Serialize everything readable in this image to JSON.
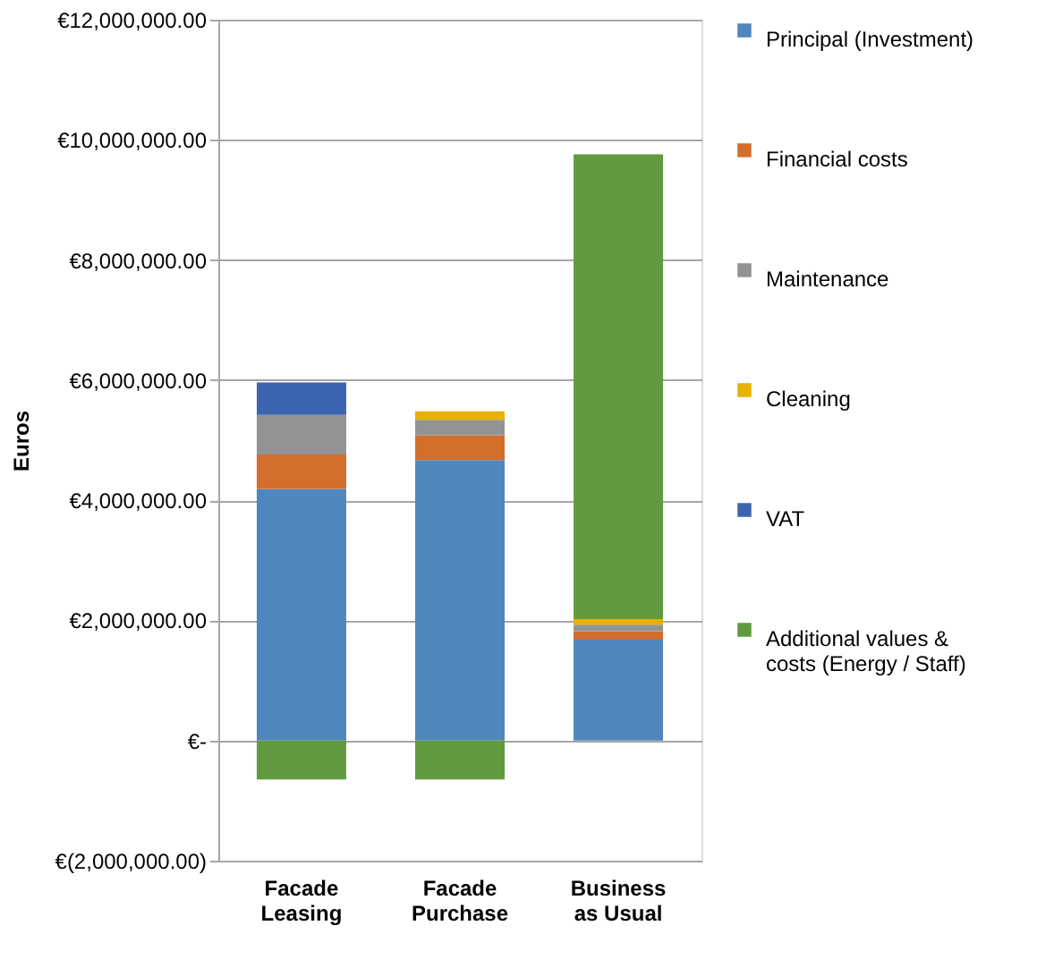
{
  "chart_data": {
    "type": "bar",
    "stacked": true,
    "ylabel": "Euros",
    "categories": [
      "Facade Leasing",
      "Facade Purchase",
      "Business as Usual"
    ],
    "series": [
      {
        "name": "Principal (Investment)",
        "color": "#4f86be",
        "values": [
          4190000,
          4670000,
          1680000
        ]
      },
      {
        "name": "Financial costs",
        "color": "#d46e2d",
        "values": [
          570000,
          410000,
          140000
        ]
      },
      {
        "name": "Maintenance",
        "color": "#939393",
        "values": [
          660000,
          260000,
          110000
        ]
      },
      {
        "name": "Cleaning",
        "color": "#e8b000",
        "values": [
          null,
          140000,
          90000
        ]
      },
      {
        "name": "VAT",
        "color": "#3b65b0",
        "values": [
          540000,
          null,
          null
        ]
      },
      {
        "name": "Additional values & costs (Energy / Staff)",
        "color": "#629a3f",
        "values": [
          -650000,
          -650000,
          7740000
        ]
      }
    ],
    "ylim": [
      -2000000,
      12000000
    ],
    "yticks": [
      {
        "value": -2000000,
        "label": "€(2,000,000.00)"
      },
      {
        "value": 0,
        "label": "€-"
      },
      {
        "value": 2000000,
        "label": "€2,000,000.00"
      },
      {
        "value": 4000000,
        "label": "€4,000,000.00"
      },
      {
        "value": 6000000,
        "label": "€6,000,000.00"
      },
      {
        "value": 8000000,
        "label": "€8,000,000.00"
      },
      {
        "value": 10000000,
        "label": "€10,000,000.00"
      },
      {
        "value": 12000000,
        "label": "€12,000,000.00"
      }
    ],
    "grid": "y",
    "legend": "right"
  }
}
